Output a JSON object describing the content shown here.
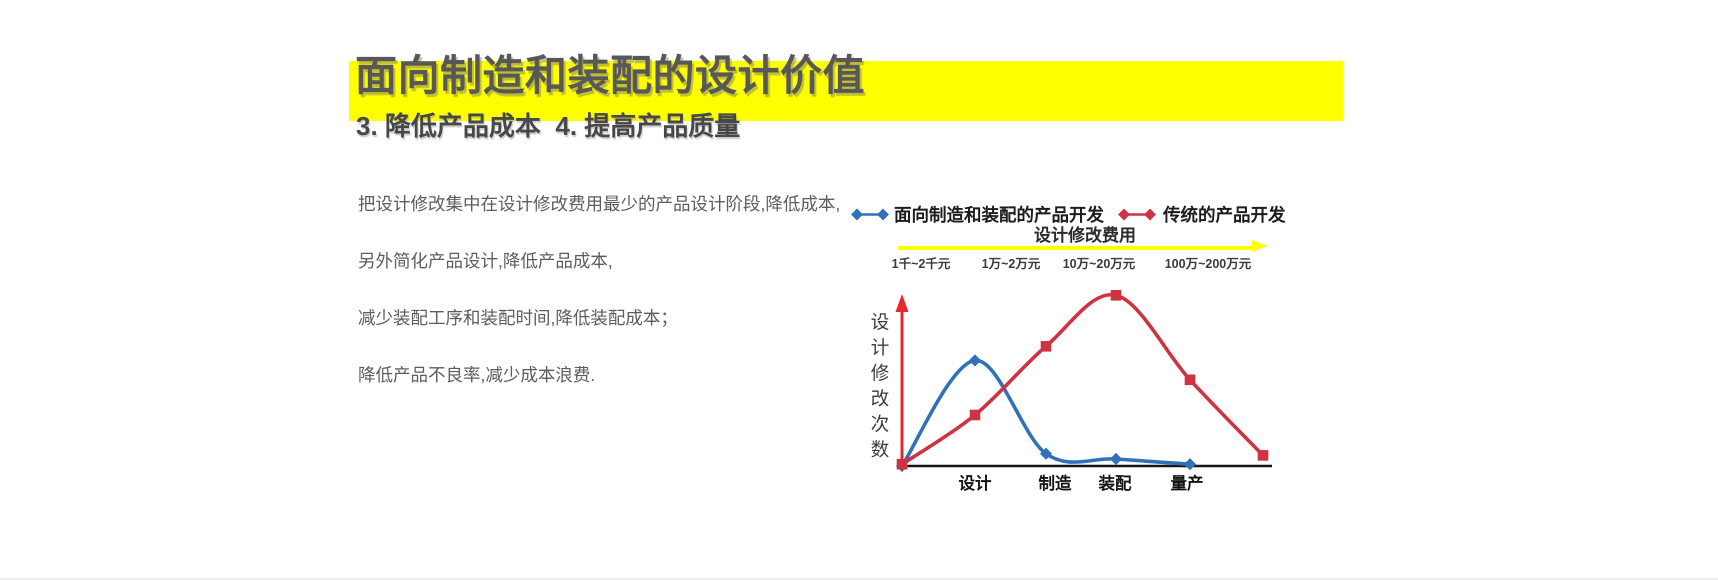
{
  "slide": {
    "title": "面向制造和装配的设计价值",
    "subtitle": "3. 降低产品成本  4. 提高产品质量",
    "paragraphs": [
      "把设计修改集中在设计修改费用最少的产品设计阶段,降低成本,",
      "另外简化产品设计,降低产品成本,",
      "减少装配工序和装配时间,降低装配成本；",
      "降低产品不良率,减少成本浪费."
    ]
  },
  "chart": {
    "legend": [
      {
        "label": "面向制造和装配的产品开发",
        "color": "#2f72ba",
        "marker": "diamond"
      },
      {
        "label": "传统的产品开发",
        "color": "#cf3241",
        "marker": "square"
      }
    ],
    "cost_axis_title": "设计修改费用",
    "cost_labels": [
      "1千~2千元",
      "1万~2万元",
      "10万~20万元",
      "100万~200万元"
    ],
    "y_axis_label": "设计修改次数",
    "x_labels": [
      "设计",
      "制造",
      "装配",
      "量产"
    ]
  },
  "colors": {
    "highlight_yellow": "#ffff00",
    "title_gray": "#585858",
    "body_gray": "#5d5d5d",
    "dfma_blue": "#2f72ba",
    "traditional_red": "#cf3241",
    "y_axis_red": "#e8282c",
    "x_axis_black": "#161616"
  },
  "chart_data": {
    "type": "line",
    "ylabel": "设计修改次数",
    "y_axis_numeric": false,
    "value_scale": "relative 0-100 (图中无数值刻度)",
    "x_stages": [
      "设计",
      "制造",
      "装配",
      "量产"
    ],
    "cost_per_change_axis": {
      "title": "设计修改费用",
      "labels": [
        "1千~2千元",
        "1万~2万元",
        "10万~20万元",
        "100万~200万元"
      ]
    },
    "series": [
      {
        "name": "面向制造和装配的产品开发",
        "color": "#2f72ba",
        "marker": "diamond",
        "points": [
          {
            "x": "start",
            "y": 0
          },
          {
            "x": "设计",
            "y": 60
          },
          {
            "x": "制造",
            "y": 7
          },
          {
            "x": "装配",
            "y": 4
          },
          {
            "x": "量产",
            "y": 1
          }
        ]
      },
      {
        "name": "传统的产品开发",
        "color": "#cf3241",
        "marker": "square",
        "points": [
          {
            "x": "start",
            "y": 1
          },
          {
            "x": "设计",
            "y": 29
          },
          {
            "x": "制造",
            "y": 68
          },
          {
            "x": "装配",
            "y": 97
          },
          {
            "x": "量产",
            "y": 49
          },
          {
            "x": "end",
            "y": 6
          }
        ]
      }
    ]
  }
}
